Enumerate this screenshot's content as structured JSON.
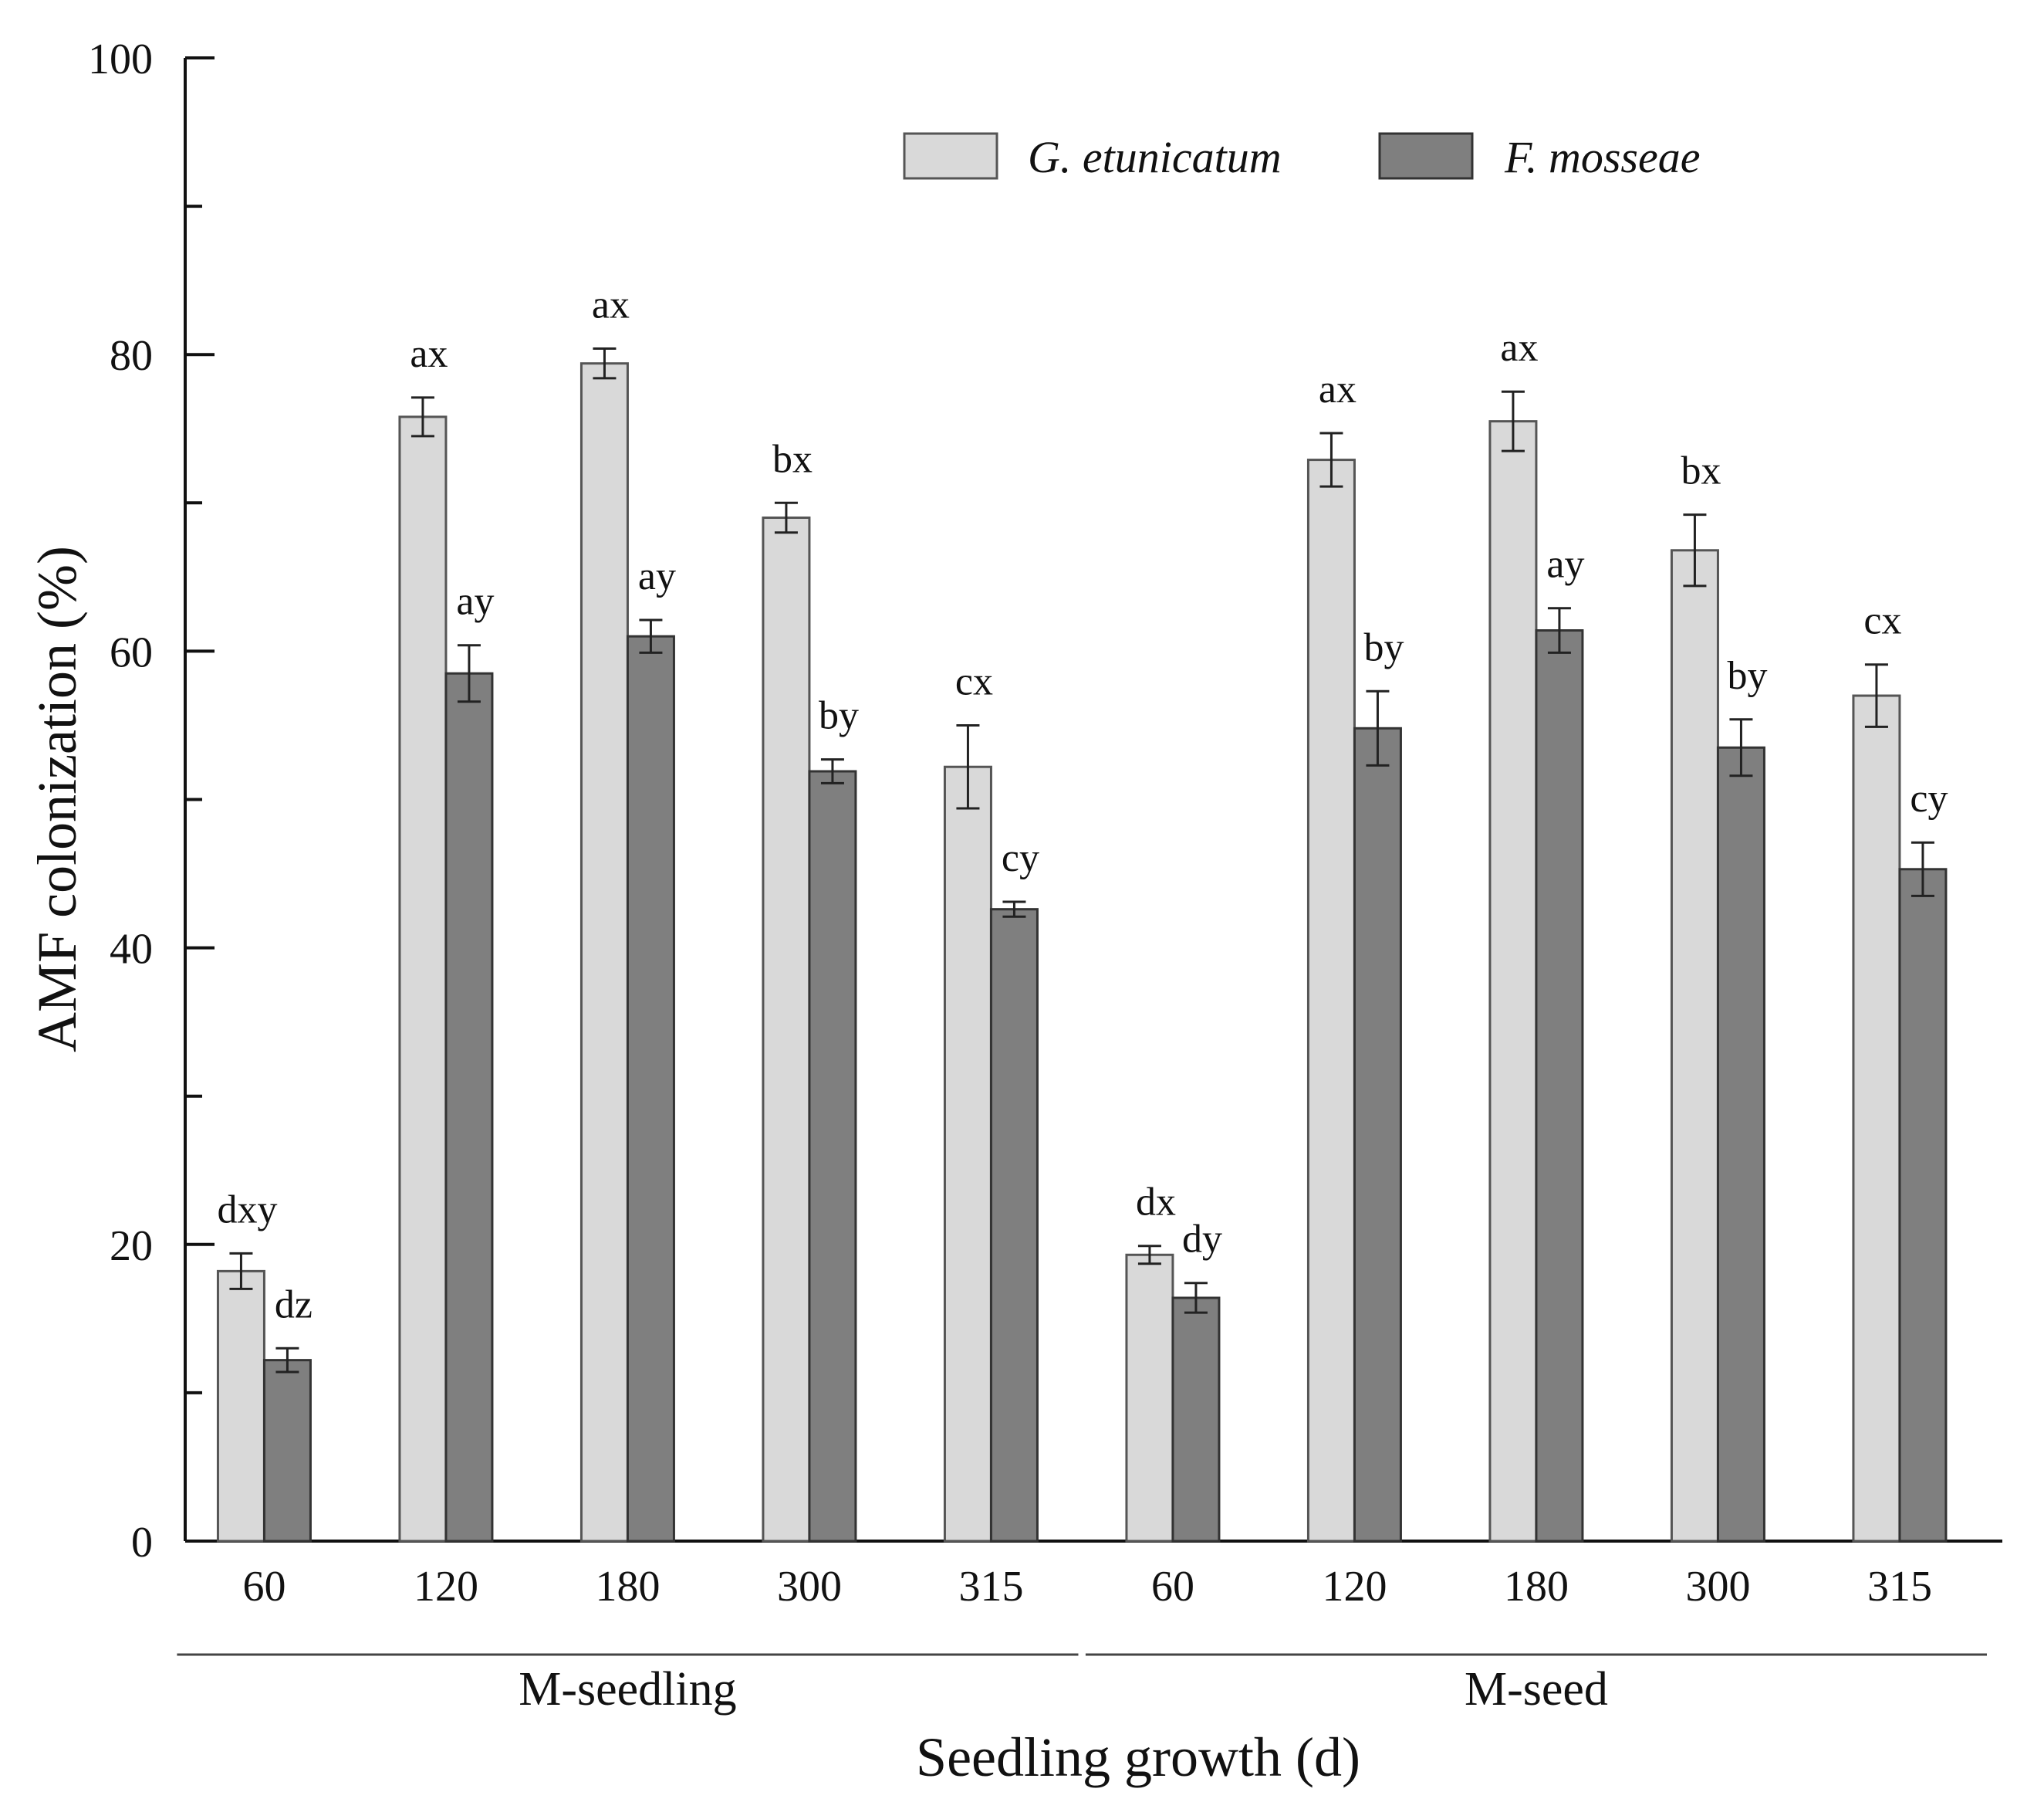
{
  "chart_data": {
    "type": "bar",
    "title": "",
    "xlabel": "Seedling growth (d)",
    "ylabel": "AMF colonization  (%)",
    "ylim": [
      0,
      100
    ],
    "yticks": [
      0,
      20,
      40,
      60,
      80,
      100
    ],
    "grid": false,
    "legend_position": "top-right",
    "groups": [
      {
        "name": "M-seedling",
        "categories": [
          "60",
          "120",
          "180",
          "300",
          "315"
        ]
      },
      {
        "name": "M-seed",
        "categories": [
          "60",
          "120",
          "180",
          "300",
          "315"
        ]
      }
    ],
    "series": [
      {
        "name": "G. etunicatum",
        "color": "#d9d9d9",
        "values": [
          18.2,
          75.8,
          79.4,
          69.0,
          52.2,
          19.3,
          72.9,
          75.5,
          66.8,
          57.0
        ],
        "errors": [
          1.2,
          1.3,
          1.0,
          1.0,
          2.8,
          0.6,
          1.8,
          2.0,
          2.4,
          2.1
        ],
        "labels": [
          "dxy",
          "ax",
          "ax",
          "bx",
          "cx",
          "dx",
          "ax",
          "ax",
          "bx",
          "cx"
        ]
      },
      {
        "name": "F. mosseae",
        "color": "#7f7f7f",
        "values": [
          12.2,
          58.5,
          61.0,
          51.9,
          42.6,
          16.4,
          54.8,
          61.4,
          53.5,
          45.3
        ],
        "errors": [
          0.8,
          1.9,
          1.1,
          0.8,
          0.5,
          1.0,
          2.5,
          1.5,
          1.9,
          1.8
        ],
        "labels": [
          "dz",
          "ay",
          "ay",
          "by",
          "cy",
          "dy",
          "by",
          "ay",
          "by",
          "cy"
        ]
      }
    ]
  }
}
